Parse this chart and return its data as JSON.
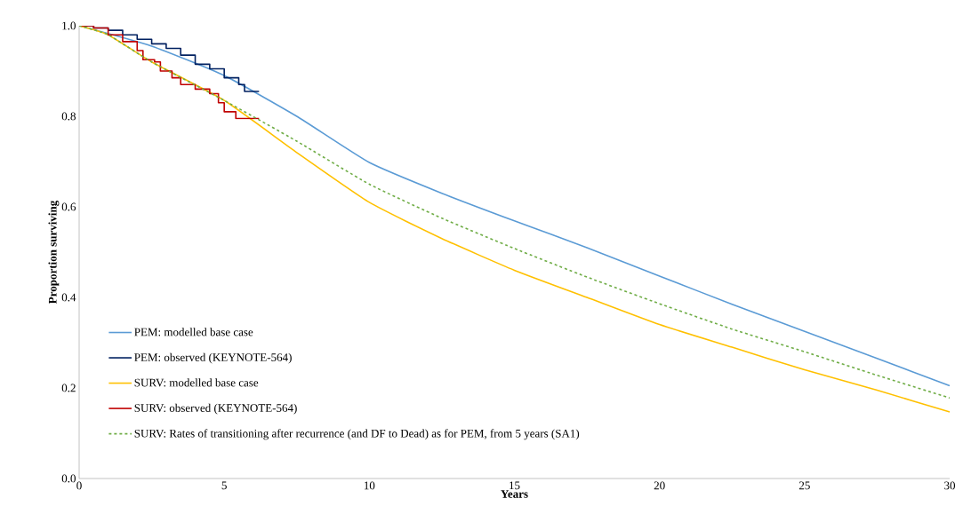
{
  "chart_data": {
    "type": "line",
    "xlabel": "Years",
    "ylabel": "Proportion surviving",
    "xlim": [
      0,
      30
    ],
    "ylim": [
      0,
      1
    ],
    "xticks": [
      0,
      5,
      10,
      15,
      20,
      25,
      30
    ],
    "yticks": [
      {
        "value": 0,
        "label": "0.0"
      },
      {
        "value": 0.2,
        "label": "0.2"
      },
      {
        "value": 0.4,
        "label": "0.4"
      },
      {
        "value": 0.6,
        "label": "0.6"
      },
      {
        "value": 0.8,
        "label": "0.8"
      },
      {
        "value": 1,
        "label": "1.0"
      }
    ],
    "grid": false,
    "legend": "left",
    "marker": "none",
    "series": [
      {
        "name": "PEM: modelled base case",
        "color": "#5b9bd5",
        "x": [
          0,
          2.5,
          5,
          7.5,
          10,
          12.5,
          15,
          17.5,
          20,
          22.5,
          25,
          27.5,
          30
        ],
        "values": [
          1,
          0.955,
          0.89,
          0.8,
          0.698,
          0.63,
          0.569,
          0.51,
          0.447,
          0.385,
          0.325,
          0.265,
          0.205
        ]
      },
      {
        "name": "PEM: observed (KEYNOTE-564)",
        "color": "#002060",
        "type": "step",
        "x": [
          0,
          0.5,
          1,
          1.5,
          2,
          2.5,
          3,
          3.5,
          4,
          4.5,
          5,
          5.5,
          5.7,
          6.2
        ],
        "values": [
          1,
          0.995,
          0.99,
          0.98,
          0.97,
          0.96,
          0.95,
          0.935,
          0.915,
          0.905,
          0.885,
          0.87,
          0.855,
          0.855
        ]
      },
      {
        "name": "SURV: modelled base case",
        "color": "#ffc000",
        "x": [
          0,
          1,
          2.5,
          5,
          7.5,
          10,
          12.5,
          15,
          17.5,
          20,
          22.5,
          25,
          27.5,
          30
        ],
        "values": [
          1,
          0.98,
          0.92,
          0.835,
          0.72,
          0.61,
          0.53,
          0.46,
          0.4,
          0.34,
          0.29,
          0.24,
          0.195,
          0.147
        ]
      },
      {
        "name": "SURV: observed (KEYNOTE-564)",
        "color": "#c00000",
        "type": "step",
        "x": [
          0,
          0.5,
          1,
          1.5,
          2,
          2.2,
          2.6,
          2.8,
          3.2,
          3.5,
          4,
          4.5,
          4.8,
          5,
          5.4,
          6.2
        ],
        "values": [
          1,
          0.995,
          0.98,
          0.965,
          0.945,
          0.925,
          0.92,
          0.9,
          0.885,
          0.87,
          0.86,
          0.85,
          0.83,
          0.81,
          0.795,
          0.795
        ]
      },
      {
        "name": "SURV: Rates of transitioning after recurrence (and DF to Dead) as for PEM, from 5 years (SA1)",
        "color": "#70ad47",
        "line_style": "dashed",
        "x": [
          0,
          1,
          2.5,
          5,
          7.5,
          10,
          12.5,
          15,
          17.5,
          20,
          22.5,
          25,
          27.5,
          30
        ],
        "values": [
          1,
          0.98,
          0.92,
          0.835,
          0.745,
          0.65,
          0.575,
          0.508,
          0.445,
          0.386,
          0.33,
          0.28,
          0.228,
          0.178
        ]
      }
    ]
  }
}
